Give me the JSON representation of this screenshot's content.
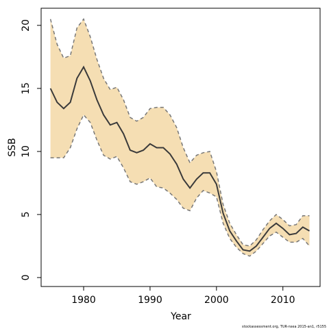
{
  "chart_data": {
    "type": "line",
    "x_label": "Year",
    "y_label": "SSB",
    "footnote": "stockassessment.org, TUR-nsea 2015-an1, r5155",
    "x": [
      1975,
      1976,
      1977,
      1978,
      1979,
      1980,
      1981,
      1982,
      1983,
      1984,
      1985,
      1986,
      1987,
      1988,
      1989,
      1990,
      1991,
      1992,
      1993,
      1994,
      1995,
      1996,
      1997,
      1998,
      1999,
      2000,
      2001,
      2002,
      2003,
      2004,
      2005,
      2006,
      2007,
      2008,
      2009,
      2010,
      2011,
      2012,
      2013,
      2014
    ],
    "values": [
      15.0,
      13.9,
      13.4,
      13.9,
      15.8,
      16.7,
      15.6,
      14.1,
      12.9,
      12.1,
      12.3,
      11.4,
      10.1,
      9.9,
      10.1,
      10.6,
      10.3,
      10.3,
      9.8,
      9.0,
      7.8,
      7.1,
      7.8,
      8.3,
      8.3,
      7.4,
      5.1,
      3.7,
      2.9,
      2.2,
      2.1,
      2.5,
      3.2,
      3.9,
      4.3,
      3.9,
      3.4,
      3.5,
      4.0,
      3.7
    ],
    "upper": [
      20.5,
      18.5,
      17.4,
      17.6,
      19.8,
      20.5,
      19.1,
      17.3,
      15.8,
      14.9,
      15.1,
      14.1,
      12.7,
      12.4,
      12.7,
      13.4,
      13.5,
      13.5,
      12.9,
      11.9,
      10.3,
      9.1,
      9.7,
      9.9,
      10.0,
      8.4,
      5.8,
      4.3,
      3.4,
      2.6,
      2.5,
      3.0,
      3.8,
      4.5,
      5.0,
      4.6,
      4.1,
      4.2,
      4.9,
      4.9
    ],
    "lower": [
      9.5,
      9.5,
      9.5,
      10.3,
      11.8,
      12.9,
      12.3,
      10.9,
      9.7,
      9.4,
      9.6,
      8.7,
      7.6,
      7.4,
      7.6,
      7.9,
      7.2,
      7.1,
      6.7,
      6.2,
      5.5,
      5.3,
      6.3,
      6.9,
      6.7,
      6.4,
      4.3,
      3.1,
      2.4,
      1.9,
      1.7,
      2.1,
      2.7,
      3.3,
      3.6,
      3.2,
      2.8,
      2.8,
      3.1,
      2.5
    ],
    "color": "#3a3a3a",
    "band_color": "#f5deb3",
    "band_line_color": "#777777",
    "xlim": [
      1973.6,
      2015.6
    ],
    "xticks": [
      1980,
      1990,
      2000,
      2010
    ],
    "ylim": [
      -0.71,
      21.36
    ],
    "yticks": [
      0,
      5,
      10,
      15,
      20
    ]
  }
}
